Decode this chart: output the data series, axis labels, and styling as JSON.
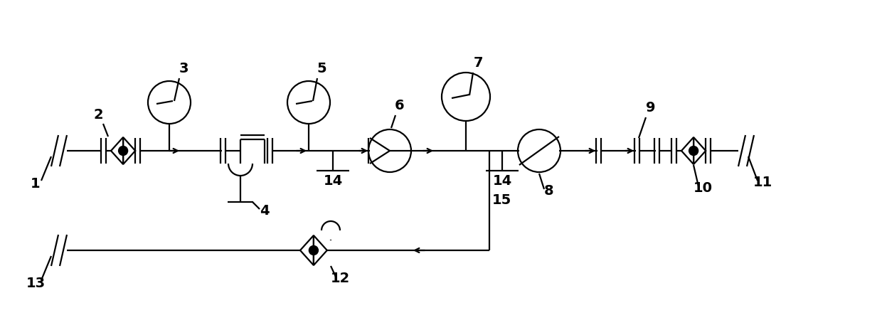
{
  "fig_width": 12.4,
  "fig_height": 4.57,
  "dpi": 100,
  "line_color": "black",
  "lw": 1.6,
  "bg_color": "white",
  "main_y": 2.45,
  "bot_y": 1.05,
  "xlim": [
    0,
    12.4
  ],
  "ylim": [
    0,
    4.57
  ]
}
